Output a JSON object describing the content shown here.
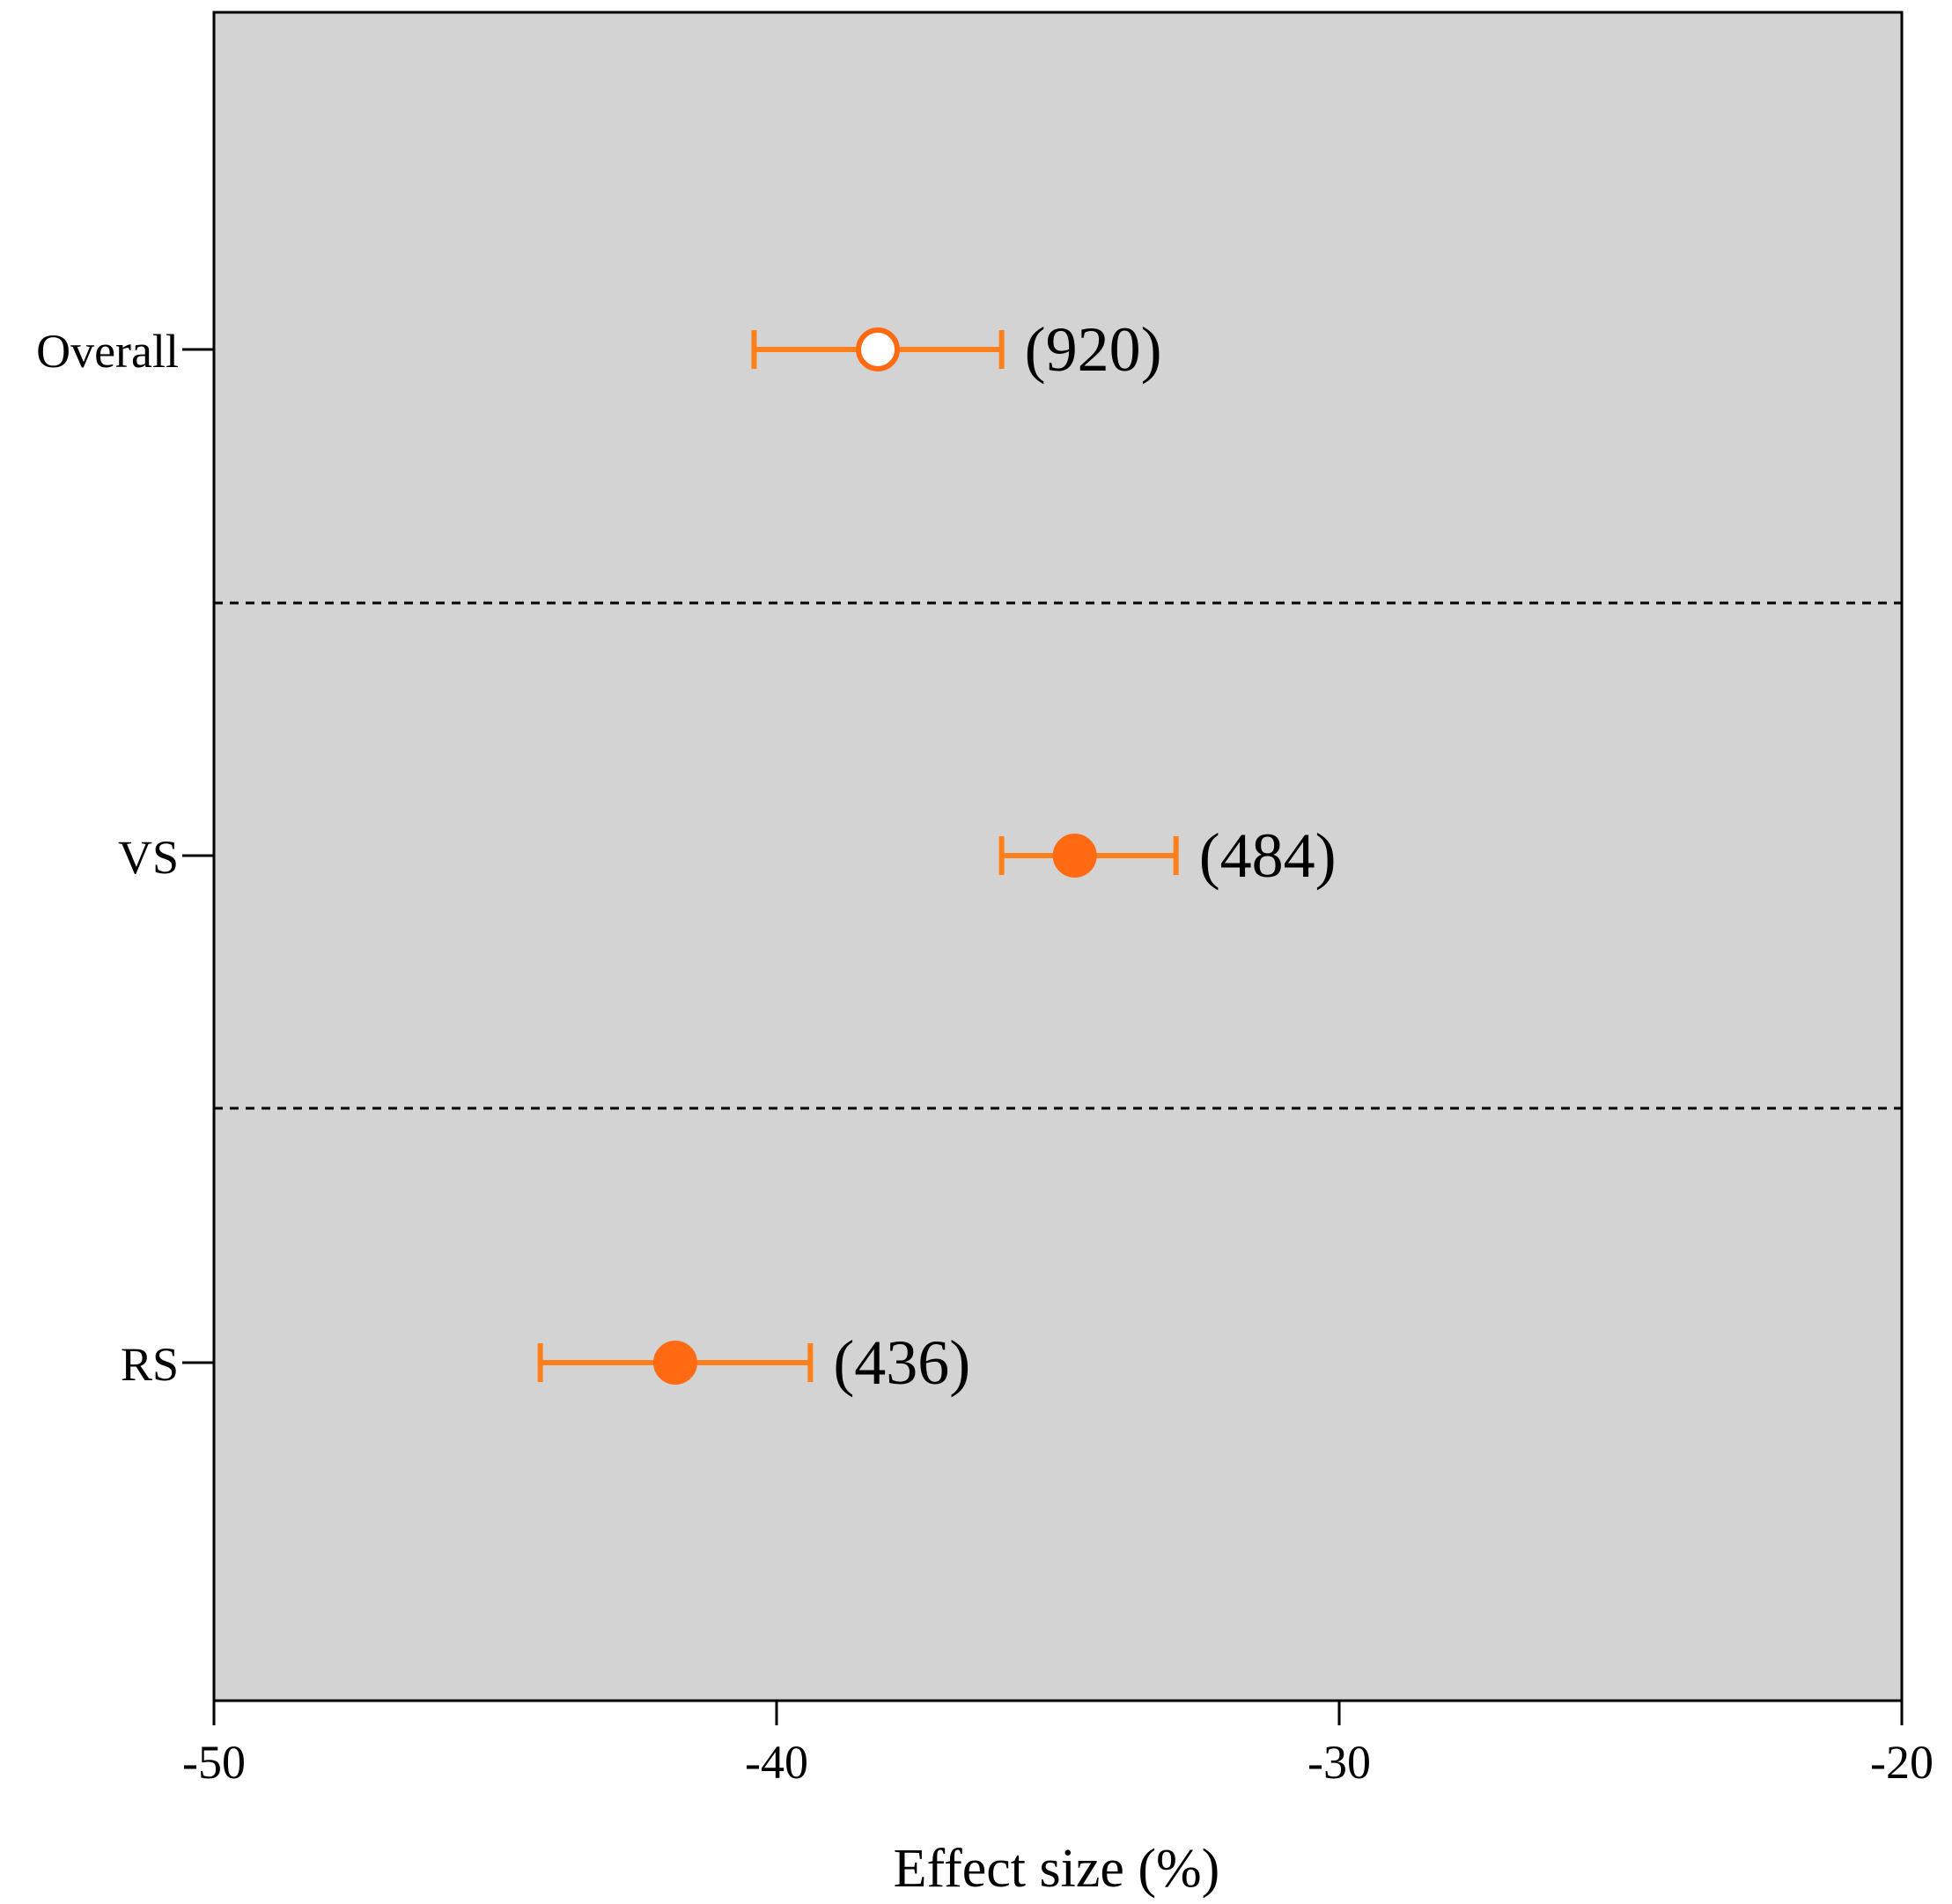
{
  "chart_data": {
    "type": "scatter",
    "xlabel": "Effect size (%)",
    "ylabel": "",
    "xlim": [
      -50,
      -20
    ],
    "xticks": [
      -50,
      -40,
      -30,
      -20
    ],
    "grid": false,
    "background_color": "#d3d3d3",
    "marker_color": "#ff6a13",
    "errorbar_color": "#ff7f1a",
    "categories": [
      "Overall",
      "VS",
      "RS"
    ],
    "points": [
      {
        "label": "Overall",
        "mean": -38.2,
        "ci_low": -40.4,
        "ci_high": -36.0,
        "n": "(920)",
        "filled": false
      },
      {
        "label": "VS",
        "mean": -34.7,
        "ci_low": -36.0,
        "ci_high": -32.9,
        "n": "(484)",
        "filled": true
      },
      {
        "label": "RS",
        "mean": -41.8,
        "ci_low": -44.2,
        "ci_high": -39.4,
        "n": "(436)",
        "filled": true
      }
    ],
    "separators": "dashed lines between groups"
  }
}
